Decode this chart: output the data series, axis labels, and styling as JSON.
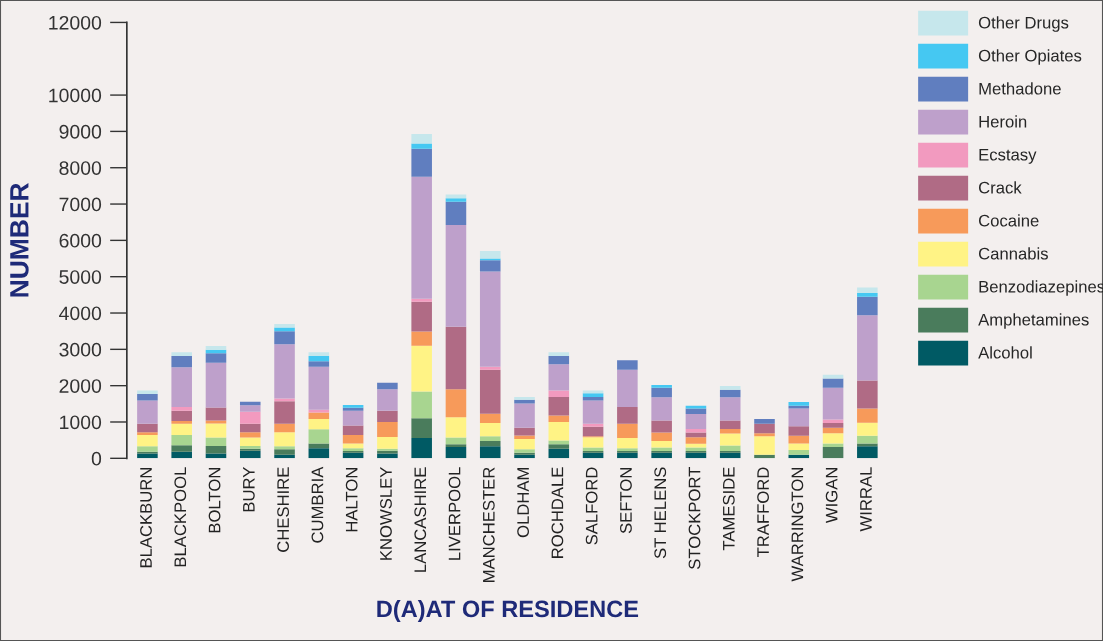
{
  "chart_data": {
    "type": "bar",
    "stacked": true,
    "xlabel": "D(A)AT OF RESIDENCE",
    "ylabel": "NUMBER",
    "categories": [
      "BLACKBURN",
      "BLACKPOOL",
      "BOLTON",
      "BURY",
      "CHESHIRE",
      "CUMBRIA",
      "HALTON",
      "KNOWSLEY",
      "LANCASHIRE",
      "LIVERPOOL",
      "MANCHESTER",
      "OLDHAM",
      "ROCHDALE",
      "SALFORD",
      "SEFTON",
      "ST HELENS",
      "STOCKPORT",
      "TAMESIDE",
      "TRAFFORD",
      "WARRINGTON",
      "WIGAN",
      "WIRRAL"
    ],
    "ylim": [
      0,
      12000
    ],
    "yticks": [
      0,
      1000,
      2000,
      3000,
      4000,
      5000,
      6000,
      7000,
      8000,
      9000,
      10000,
      12000
    ],
    "grid": false,
    "legend": "right",
    "series": [
      {
        "name": "Alcohol",
        "color": "#005a64",
        "values": [
          130,
          180,
          130,
          210,
          100,
          280,
          150,
          130,
          560,
          310,
          330,
          100,
          260,
          150,
          150,
          150,
          150,
          150,
          null,
          100,
          null,
          330
        ]
      },
      {
        "name": "Amphetamines",
        "color": "#4a7c5c",
        "values": [
          50,
          180,
          210,
          50,
          150,
          130,
          50,
          80,
          540,
          80,
          150,
          50,
          130,
          50,
          50,
          50,
          50,
          50,
          100,
          null,
          310,
          80
        ]
      },
      {
        "name": "Benzodiazepines",
        "color": "#a8d590",
        "values": [
          150,
          280,
          230,
          80,
          80,
          390,
          80,
          50,
          740,
          180,
          130,
          100,
          100,
          100,
          80,
          100,
          100,
          150,
          null,
          130,
          100,
          210
        ]
      },
      {
        "name": "Cannabis",
        "color": "#fff385",
        "values": [
          310,
          310,
          390,
          230,
          390,
          280,
          130,
          330,
          1260,
          560,
          360,
          280,
          510,
          280,
          280,
          180,
          100,
          330,
          510,
          180,
          280,
          360
        ]
      },
      {
        "name": "Cocaine",
        "color": "#f79a5a",
        "values": [
          80,
          80,
          80,
          150,
          230,
          180,
          230,
          410,
          390,
          770,
          260,
          100,
          180,
          30,
          390,
          230,
          180,
          130,
          80,
          210,
          150,
          390
        ]
      },
      {
        "name": "Crack",
        "color": "#b06b85",
        "values": [
          230,
          280,
          360,
          230,
          620,
          null,
          260,
          310,
          820,
          1720,
          1210,
          210,
          510,
          260,
          460,
          330,
          130,
          230,
          260,
          260,
          130,
          770
        ]
      },
      {
        "name": "Ecstasy",
        "color": "#f29abf",
        "values": [
          null,
          100,
          null,
          330,
          80,
          80,
          null,
          null,
          80,
          null,
          80,
          null,
          180,
          80,
          null,
          null,
          100,
          null,
          null,
          null,
          100,
          null
        ]
      },
      {
        "name": "Heroin",
        "color": "#bea0cb",
        "values": [
          640,
          1100,
          1230,
          180,
          1490,
          1180,
          410,
          590,
          3360,
          2800,
          2620,
          670,
          720,
          640,
          1030,
          640,
          410,
          640,
          null,
          490,
          870,
          1800
        ]
      },
      {
        "name": "Methadone",
        "color": "#607ebf",
        "values": [
          180,
          310,
          260,
          100,
          360,
          150,
          80,
          180,
          770,
          640,
          310,
          100,
          230,
          100,
          260,
          260,
          150,
          210,
          130,
          80,
          260,
          510
        ]
      },
      {
        "name": "Other Opiates",
        "color": "#45c8f2",
        "values": [
          null,
          null,
          100,
          null,
          100,
          150,
          80,
          null,
          150,
          100,
          50,
          null,
          null,
          100,
          null,
          80,
          80,
          null,
          null,
          100,
          null,
          100
        ]
      },
      {
        "name": "Other Drugs",
        "color": "#c6e7ec",
        "values": [
          100,
          100,
          100,
          null,
          100,
          100,
          null,
          null,
          260,
          100,
          210,
          80,
          100,
          80,
          null,
          null,
          null,
          100,
          null,
          null,
          100,
          150
        ]
      }
    ]
  }
}
